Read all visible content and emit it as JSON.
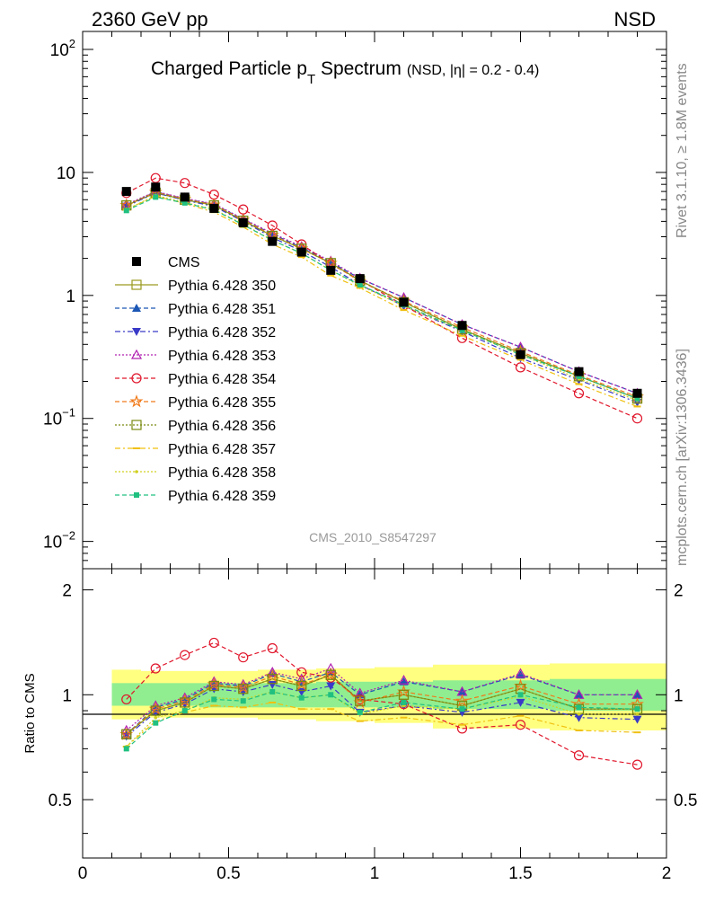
{
  "header": {
    "left": "2360 GeV pp",
    "right": "NSD",
    "side_top": "Rivet 3.1.10, ≥ 1.8M events",
    "side_bottom": "mcplots.cern.ch [arXiv:1306.3436]",
    "analysis_id": "CMS_2010_S8547297"
  },
  "chart_data": [
    {
      "type": "line",
      "panel": "spectrum",
      "title": "Charged Particle p",
      "title_sub": "T",
      "title_rest": " Spectrum",
      "title_small": "(NSD, |η| = 0.2 - 0.4)",
      "xlabel": "",
      "ylabel": "",
      "xlim": [
        0,
        2
      ],
      "ylim": [
        0.006,
        140
      ],
      "yscale": "log",
      "y_ticks": [
        {
          "label": "10",
          "sup": "2"
        },
        {
          "label": "10",
          "sup": ""
        },
        {
          "label": "1",
          "sup": ""
        },
        {
          "label": "10",
          "sup": "−1"
        },
        {
          "label": "10",
          "sup": "−2"
        }
      ],
      "y_tick_values": [
        100,
        10,
        1,
        0.1,
        0.01
      ],
      "x": [
        0.15,
        0.25,
        0.35,
        0.45,
        0.55,
        0.65,
        0.75,
        0.85,
        0.95,
        1.1,
        1.3,
        1.5,
        1.7,
        1.9
      ],
      "data": {
        "name": "CMS",
        "values": [
          7.0,
          7.6,
          6.3,
          5.1,
          3.9,
          2.75,
          2.25,
          1.6,
          1.37,
          0.88,
          0.57,
          0.33,
          0.24,
          0.16
        ]
      },
      "series": [
        {
          "name": "Pythia 6.428 350",
          "values": [
            5.4,
            6.8,
            6.0,
            5.4,
            4.05,
            3.05,
            2.4,
            1.83,
            1.32,
            0.88,
            0.53,
            0.34,
            0.22,
            0.145
          ]
        },
        {
          "name": "Pythia 6.428 351",
          "values": [
            5.4,
            6.95,
            6.1,
            5.5,
            4.15,
            3.15,
            2.45,
            1.86,
            1.37,
            0.96,
            0.58,
            0.38,
            0.24,
            0.16
          ]
        },
        {
          "name": "Pythia 6.428 352",
          "values": [
            5.3,
            6.8,
            5.95,
            5.3,
            4.0,
            2.95,
            2.3,
            1.7,
            1.22,
            0.82,
            0.51,
            0.31,
            0.205,
            0.135
          ]
        },
        {
          "name": "Pythia 6.428 353",
          "values": [
            5.5,
            7.0,
            6.15,
            5.55,
            4.2,
            3.2,
            2.5,
            1.9,
            1.38,
            0.96,
            0.58,
            0.38,
            0.24,
            0.16
          ]
        },
        {
          "name": "Pythia 6.428 354",
          "values": [
            6.8,
            9.0,
            8.2,
            6.6,
            5.0,
            3.7,
            2.6,
            1.8,
            1.33,
            0.83,
            0.45,
            0.26,
            0.16,
            0.1
          ]
        },
        {
          "name": "Pythia 6.428 355",
          "values": [
            5.4,
            6.9,
            6.05,
            5.45,
            4.1,
            3.1,
            2.4,
            1.83,
            1.3,
            0.9,
            0.55,
            0.35,
            0.225,
            0.15
          ]
        },
        {
          "name": "Pythia 6.428 356",
          "values": [
            5.4,
            6.85,
            6.0,
            5.4,
            4.05,
            3.05,
            2.4,
            1.83,
            1.32,
            0.88,
            0.53,
            0.34,
            0.22,
            0.145
          ]
        },
        {
          "name": "Pythia 6.428 357",
          "values": [
            5.0,
            6.4,
            5.6,
            4.75,
            3.6,
            2.6,
            2.05,
            1.45,
            1.15,
            0.76,
            0.47,
            0.3,
            0.19,
            0.125
          ]
        },
        {
          "name": "Pythia 6.428 358",
          "values": [
            5.0,
            6.5,
            5.7,
            5.0,
            3.8,
            2.8,
            2.2,
            1.6,
            1.2,
            0.82,
            0.52,
            0.33,
            0.21,
            0.14
          ]
        },
        {
          "name": "Pythia 6.428 359",
          "values": [
            4.9,
            6.3,
            5.65,
            4.95,
            3.75,
            2.8,
            2.2,
            1.6,
            1.22,
            0.84,
            0.52,
            0.33,
            0.22,
            0.145
          ]
        }
      ],
      "colors": [
        "#9a9a20",
        "#1c57b5",
        "#3a3ac8",
        "#b020b0",
        "#e0162b",
        "#f07a1a",
        "#7a8a10",
        "#f0c010",
        "#d0d020",
        "#20c080"
      ],
      "legend_position": "left-middle"
    },
    {
      "type": "line",
      "panel": "ratio",
      "ylabel": "Ratio to CMS",
      "xlim": [
        0,
        2
      ],
      "ylim": [
        0.34,
        2.3
      ],
      "x_ticks": [
        "0",
        "0.5",
        "1",
        "1.5",
        "2"
      ],
      "y_ticks": [
        "2",
        "1",
        "0.5"
      ],
      "y_tick_values": [
        2,
        1,
        0.5
      ],
      "x": [
        0.15,
        0.25,
        0.35,
        0.45,
        0.55,
        0.65,
        0.75,
        0.85,
        0.95,
        1.1,
        1.3,
        1.5,
        1.7,
        1.9
      ],
      "bands": {
        "edges": [
          0.1,
          0.2,
          0.3,
          0.4,
          0.5,
          0.6,
          0.7,
          0.8,
          0.9,
          1.0,
          1.2,
          1.4,
          1.6,
          1.8,
          2.0
        ],
        "inner": [
          [
            0.93,
            1.08
          ],
          [
            0.93,
            1.08
          ],
          [
            0.93,
            1.08
          ],
          [
            0.92,
            1.08
          ],
          [
            0.92,
            1.08
          ],
          [
            0.92,
            1.08
          ],
          [
            0.92,
            1.08
          ],
          [
            0.92,
            1.09
          ],
          [
            0.92,
            1.09
          ],
          [
            0.92,
            1.09
          ],
          [
            0.91,
            1.1
          ],
          [
            0.91,
            1.1
          ],
          [
            0.9,
            1.11
          ],
          [
            0.9,
            1.11
          ]
        ],
        "outer": [
          [
            0.85,
            1.18
          ],
          [
            0.86,
            1.17
          ],
          [
            0.86,
            1.17
          ],
          [
            0.86,
            1.17
          ],
          [
            0.86,
            1.17
          ],
          [
            0.85,
            1.18
          ],
          [
            0.85,
            1.18
          ],
          [
            0.84,
            1.19
          ],
          [
            0.84,
            1.19
          ],
          [
            0.83,
            1.2
          ],
          [
            0.8,
            1.22
          ],
          [
            0.8,
            1.22
          ],
          [
            0.79,
            1.23
          ],
          [
            0.79,
            1.23
          ]
        ],
        "inner_color": "#90ee90",
        "outer_color": "#ffff80"
      },
      "series": [
        {
          "name": "Pythia 6.428 350",
          "values": [
            0.77,
            0.9,
            0.95,
            1.06,
            1.04,
            1.11,
            1.06,
            1.14,
            0.96,
            1.0,
            0.93,
            1.04,
            0.91,
            0.91
          ]
        },
        {
          "name": "Pythia 6.428 351",
          "values": [
            0.77,
            0.92,
            0.97,
            1.08,
            1.06,
            1.15,
            1.09,
            1.16,
            1.0,
            1.09,
            1.02,
            1.14,
            1.0,
            1.0
          ]
        },
        {
          "name": "Pythia 6.428 352",
          "values": [
            0.76,
            0.89,
            0.94,
            1.04,
            1.02,
            1.07,
            1.02,
            1.06,
            0.89,
            0.93,
            0.89,
            0.95,
            0.86,
            0.85
          ]
        },
        {
          "name": "Pythia 6.428 353",
          "values": [
            0.79,
            0.93,
            0.98,
            1.09,
            1.07,
            1.16,
            1.11,
            1.19,
            1.01,
            1.1,
            1.02,
            1.15,
            1.0,
            1.0
          ]
        },
        {
          "name": "Pythia 6.428 354",
          "values": [
            0.97,
            1.19,
            1.3,
            1.41,
            1.28,
            1.36,
            1.16,
            1.12,
            0.97,
            0.94,
            0.8,
            0.82,
            0.67,
            0.63
          ]
        },
        {
          "name": "Pythia 6.428 355",
          "values": [
            0.77,
            0.91,
            0.96,
            1.07,
            1.05,
            1.13,
            1.07,
            1.14,
            0.95,
            1.02,
            0.96,
            1.06,
            0.94,
            0.94
          ]
        },
        {
          "name": "Pythia 6.428 356",
          "values": [
            0.77,
            0.9,
            0.95,
            1.06,
            1.04,
            1.11,
            1.06,
            1.14,
            0.96,
            1.0,
            0.93,
            1.04,
            0.91,
            0.91
          ]
        },
        {
          "name": "Pythia 6.428 357",
          "values": [
            0.71,
            0.84,
            0.89,
            0.93,
            0.92,
            0.95,
            0.91,
            0.91,
            0.84,
            0.86,
            0.82,
            0.87,
            0.79,
            0.78
          ]
        },
        {
          "name": "Pythia 6.428 358",
          "values": [
            0.71,
            0.86,
            0.9,
            0.98,
            0.97,
            1.02,
            0.98,
            1.0,
            0.88,
            0.93,
            0.91,
            0.99,
            0.88,
            0.88
          ]
        },
        {
          "name": "Pythia 6.428 359",
          "values": [
            0.7,
            0.83,
            0.9,
            0.97,
            0.96,
            1.02,
            0.98,
            1.0,
            0.89,
            0.95,
            0.91,
            1.0,
            0.92,
            0.91
          ]
        }
      ]
    }
  ]
}
